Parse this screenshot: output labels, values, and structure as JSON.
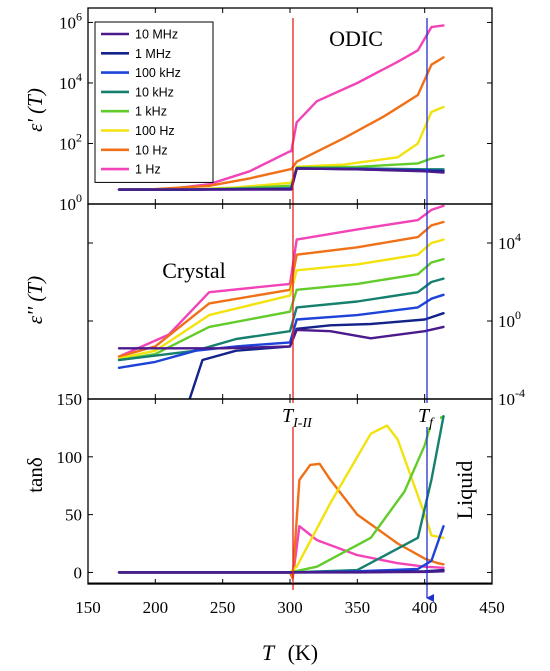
{
  "figure": {
    "xlabel": "T",
    "xunit": "(K)",
    "transition_labels": [
      {
        "main": "T",
        "sub": "I-II",
        "color": "#e8201e"
      },
      {
        "main": "T",
        "sub": "f",
        "color": "#1f2fd0"
      }
    ],
    "transition_lines_K": [
      302,
      400
    ],
    "region_labels": [
      "ODIC",
      "Crystal",
      "Liquid"
    ],
    "legend": [
      {
        "name": "10 MHz",
        "color": "#4b1a8c"
      },
      {
        "name": "1 MHz",
        "color": "#14238a"
      },
      {
        "name": "100 kHz",
        "color": "#1d43d8"
      },
      {
        "name": "10 kHz",
        "color": "#16806f"
      },
      {
        "name": "1 kHz",
        "color": "#62cc2a"
      },
      {
        "name": "100 Hz",
        "color": "#f2e20e"
      },
      {
        "name": "10 Hz",
        "color": "#f07018"
      },
      {
        "name": "1 Hz",
        "color": "#f243b8"
      }
    ]
  },
  "chart_data": [
    {
      "type": "line",
      "ylabel": "ε' (T)",
      "yscale": "log",
      "xlim": [
        150,
        450
      ],
      "ylim": [
        1,
        3000000
      ],
      "xticks": [
        150,
        200,
        250,
        300,
        350,
        400,
        450
      ],
      "yticks": [
        {
          "value": 1,
          "base": "10",
          "exp": "0"
        },
        {
          "value": 100,
          "base": "10",
          "exp": "2"
        },
        {
          "value": 10000,
          "base": "10",
          "exp": "4"
        },
        {
          "value": 1000000,
          "base": "10",
          "exp": "6"
        }
      ],
      "series": [
        {
          "name": "10 MHz",
          "x": [
            173,
            225,
            300,
            301,
            305,
            350,
            400,
            414
          ],
          "y": [
            3,
            3,
            3,
            3,
            15,
            14,
            12,
            11
          ]
        },
        {
          "name": "1 MHz",
          "x": [
            173,
            225,
            300,
            301,
            305,
            350,
            400,
            414
          ],
          "y": [
            3,
            3,
            3.1,
            3.1,
            15,
            14,
            12.5,
            12
          ]
        },
        {
          "name": "100 kHz",
          "x": [
            173,
            225,
            300,
            301,
            305,
            350,
            400,
            414
          ],
          "y": [
            3,
            3,
            3.2,
            3.2,
            15,
            14.5,
            13,
            12.5
          ]
        },
        {
          "name": "10 kHz",
          "x": [
            173,
            225,
            300,
            301,
            305,
            350,
            400,
            414
          ],
          "y": [
            3,
            3,
            3.3,
            3.3,
            15,
            15,
            14,
            14
          ]
        },
        {
          "name": "1 kHz",
          "x": [
            173,
            225,
            260,
            300,
            301,
            305,
            350,
            395,
            405,
            414
          ],
          "y": [
            3,
            3,
            3.3,
            4,
            4,
            16,
            17,
            22,
            32,
            40
          ]
        },
        {
          "name": "100 Hz",
          "x": [
            173,
            225,
            260,
            300,
            301,
            305,
            340,
            380,
            395,
            405,
            414
          ],
          "y": [
            3,
            3,
            3.5,
            5,
            5,
            17,
            20,
            35,
            100,
            1100,
            1600
          ]
        },
        {
          "name": "10 Hz",
          "x": [
            173,
            200,
            240,
            270,
            300,
            301,
            305,
            340,
            370,
            395,
            405,
            414
          ],
          "y": [
            3,
            3.1,
            4,
            7,
            14,
            14,
            25,
            150,
            800,
            4000,
            40000,
            70000
          ]
        },
        {
          "name": "1 Hz",
          "x": [
            173,
            210,
            240,
            270,
            300,
            301,
            305,
            320,
            350,
            380,
            395,
            405,
            414
          ],
          "y": [
            3,
            3.1,
            4.5,
            12,
            55,
            55,
            500,
            2500,
            10000,
            50000,
            120000,
            700000,
            800000
          ]
        }
      ]
    },
    {
      "type": "line",
      "ylabel": "ε'' (T)",
      "yscale": "log",
      "xlim": [
        150,
        450
      ],
      "ylim": [
        0.0001,
        1000000
      ],
      "xticks": [
        150,
        200,
        250,
        300,
        350,
        400,
        450
      ],
      "yticks": [
        {
          "value": 0.0001,
          "base": "10",
          "exp": "-4"
        },
        {
          "value": 1,
          "base": "10",
          "exp": "0"
        },
        {
          "value": 10000,
          "base": "10",
          "exp": "4"
        }
      ],
      "series": [
        {
          "name": "10 MHz",
          "x": [
            173,
            250,
            300,
            305,
            330,
            360,
            400,
            414
          ],
          "y": [
            0.04,
            0.04,
            0.05,
            0.35,
            0.3,
            0.13,
            0.3,
            0.5
          ]
        },
        {
          "name": "1 MHz",
          "x": [
            225,
            235,
            260,
            300,
            305,
            330,
            360,
            400,
            414
          ],
          "y": [
            8e-05,
            0.01,
            0.03,
            0.05,
            0.4,
            0.6,
            0.7,
            1.2,
            2.5
          ]
        },
        {
          "name": "100 kHz",
          "x": [
            173,
            200,
            230,
            260,
            300,
            305,
            350,
            395,
            405,
            414
          ],
          "y": [
            0.004,
            0.008,
            0.03,
            0.05,
            0.08,
            1.2,
            2,
            5,
            14,
            22
          ]
        },
        {
          "name": "10 kHz",
          "x": [
            173,
            230,
            260,
            300,
            305,
            350,
            395,
            405,
            414
          ],
          "y": [
            0.01,
            0.03,
            0.12,
            0.3,
            5,
            10,
            30,
            100,
            150
          ]
        },
        {
          "name": "1 kHz",
          "x": [
            173,
            200,
            240,
            300,
            305,
            350,
            395,
            405,
            414
          ],
          "y": [
            0.01,
            0.02,
            0.5,
            3,
            40,
            80,
            250,
            1000,
            1500
          ]
        },
        {
          "name": "100 Hz",
          "x": [
            173,
            200,
            240,
            300,
            305,
            350,
            395,
            405,
            414
          ],
          "y": [
            0.012,
            0.03,
            2,
            20,
            400,
            800,
            2500,
            10000,
            15000
          ]
        },
        {
          "name": "10 Hz",
          "x": [
            173,
            200,
            240,
            300,
            305,
            350,
            395,
            405,
            414
          ],
          "y": [
            0.015,
            0.05,
            8,
            40,
            2500,
            6000,
            20000,
            80000,
            120000
          ]
        },
        {
          "name": "1 Hz",
          "x": [
            173,
            210,
            240,
            300,
            305,
            350,
            395,
            405,
            414
          ],
          "y": [
            0.015,
            0.2,
            30,
            80,
            15000,
            50000,
            150000,
            500000,
            800000
          ]
        }
      ]
    },
    {
      "type": "line",
      "ylabel": "tanδ",
      "yscale": "linear",
      "xlim": [
        150,
        450
      ],
      "ylim": [
        -10,
        150
      ],
      "xticks": [
        150,
        200,
        250,
        300,
        350,
        400,
        450
      ],
      "yticks": [
        {
          "value": 0,
          "label": "0"
        },
        {
          "value": 50,
          "label": "50"
        },
        {
          "value": 100,
          "label": "100"
        },
        {
          "value": 150,
          "label": "150"
        }
      ],
      "series": [
        {
          "name": "10 MHz",
          "x": [
            173,
            300,
            350,
            400,
            414
          ],
          "y": [
            0,
            0,
            0,
            0.5,
            1
          ]
        },
        {
          "name": "1 MHz",
          "x": [
            173,
            300,
            350,
            400,
            414
          ],
          "y": [
            0,
            0,
            0.2,
            1,
            2
          ]
        },
        {
          "name": "100 kHz",
          "x": [
            173,
            300,
            350,
            395,
            405,
            414
          ],
          "y": [
            0,
            0,
            1,
            3,
            10,
            40
          ]
        },
        {
          "name": "10 kHz",
          "x": [
            173,
            300,
            350,
            395,
            405,
            414
          ],
          "y": [
            0,
            0,
            2,
            30,
            80,
            135
          ]
        },
        {
          "name": "1 kHz",
          "x": [
            173,
            300,
            320,
            360,
            385,
            400,
            405,
            414
          ],
          "y": [
            0,
            0,
            5,
            30,
            70,
            110,
            130,
            135
          ]
        },
        {
          "name": "100 Hz",
          "x": [
            173,
            300,
            305,
            330,
            360,
            372,
            380,
            400,
            405,
            414
          ],
          "y": [
            0,
            0,
            5,
            60,
            120,
            127,
            115,
            50,
            32,
            30
          ]
        },
        {
          "name": "10 Hz",
          "x": [
            173,
            300,
            302,
            307,
            315,
            322,
            330,
            350,
            380,
            400,
            410,
            414
          ],
          "y": [
            0,
            0,
            -5,
            80,
            93,
            94,
            80,
            50,
            25,
            12,
            8,
            7
          ]
        },
        {
          "name": "1 Hz",
          "x": [
            173,
            300,
            302,
            307,
            320,
            350,
            380,
            400,
            414
          ],
          "y": [
            0,
            0,
            -5,
            40,
            28,
            15,
            8,
            5,
            4
          ]
        }
      ]
    }
  ]
}
